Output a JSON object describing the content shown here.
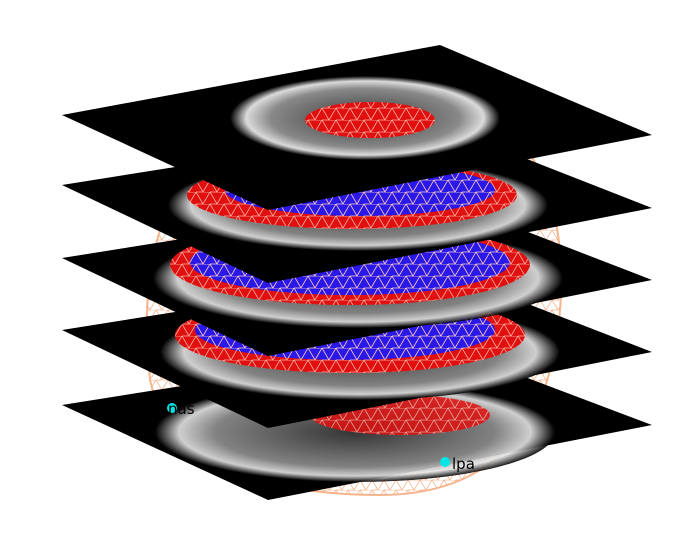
{
  "scene": {
    "background": "#ffffff",
    "colors": {
      "slice_plane": "#000000",
      "mri_tissue": "#d8d8d8",
      "scalp_mesh": "#f6b48c",
      "brain_surface": "#e01010",
      "cortex_mesh": "#1a10e0",
      "mesh_line": "#ffffff",
      "fiducial_marker": "#00e5e5"
    },
    "fiducials": [
      {
        "label": "nas",
        "icon": "fiducial-marker-icon"
      },
      {
        "label": "lpa",
        "icon": "fiducial-marker-icon"
      }
    ]
  }
}
